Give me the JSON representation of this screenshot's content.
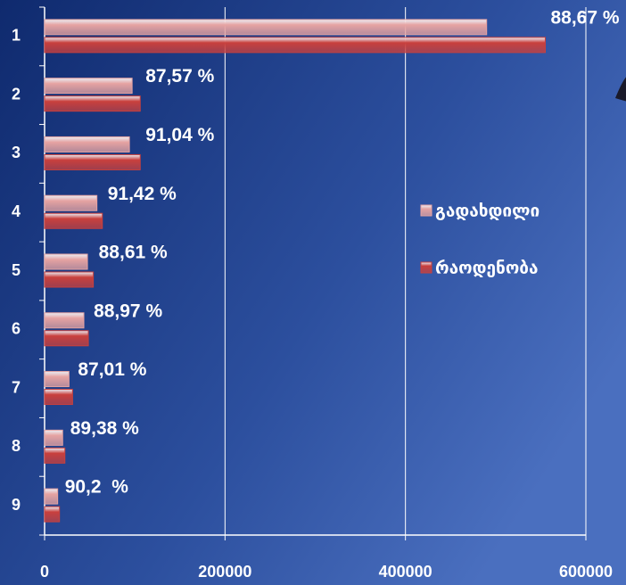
{
  "chart_data": {
    "type": "hbar",
    "categories": [
      "1",
      "2",
      "3",
      "4",
      "5",
      "6",
      "7",
      "8",
      "9"
    ],
    "series": [
      {
        "name": "გადახდილი",
        "color": "#e6a3a2",
        "values": [
          490000,
          97000,
          94000,
          58000,
          47500,
          43500,
          27000,
          20000,
          14500
        ]
      },
      {
        "name": "რაოდენობა",
        "color": "#c9403d",
        "values": [
          555000,
          106000,
          106000,
          64000,
          54000,
          48500,
          31000,
          22500,
          16500
        ]
      }
    ],
    "annotations": [
      "88,67 %",
      "87,57 %",
      "91,04 %",
      "91,42 %",
      "88,61 %",
      "88,97 %",
      "87,01 %",
      "89,38 %",
      "90,2  %"
    ],
    "xlim": [
      0,
      600000
    ],
    "xticks": [
      0,
      200000,
      400000,
      600000
    ],
    "grid": true,
    "legend": "right"
  }
}
